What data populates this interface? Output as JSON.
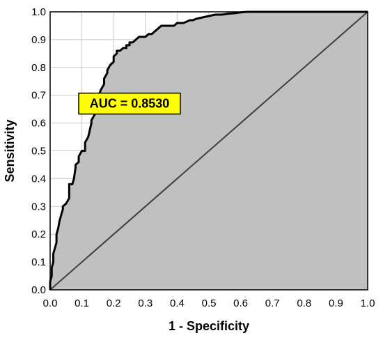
{
  "chart_data": {
    "type": "area",
    "title": "",
    "xlabel": "1 - Specificity",
    "ylabel": "Sensitivity",
    "xlim": [
      0,
      1
    ],
    "ylim": [
      0,
      1
    ],
    "x_ticks": [
      "0.0",
      "0.1",
      "0.2",
      "0.3",
      "0.4",
      "0.5",
      "0.6",
      "0.7",
      "0.8",
      "0.9",
      "1.0"
    ],
    "y_ticks": [
      "0.0",
      "0.1",
      "0.2",
      "0.3",
      "0.4",
      "0.5",
      "0.6",
      "0.7",
      "0.8",
      "0.9",
      "1.0"
    ],
    "grid": true,
    "annotation": {
      "text": "AUC = 0.8530",
      "x": 0.25,
      "y": 0.67
    },
    "colors": {
      "fill": "#c0c0c0",
      "curve": "#000000",
      "diagonal": "#404040",
      "annotation_bg": "#ffff00",
      "grid": "#c8c8c8"
    },
    "series": [
      {
        "x": [
          0,
          0,
          0.005,
          0.005,
          0.01,
          0.01,
          0.015,
          0.02,
          0.02,
          0.025,
          0.03,
          0.035,
          0.04,
          0.04,
          0.05,
          0.06,
          0.06,
          0.07,
          0.075,
          0.08,
          0.08,
          0.09,
          0.09,
          0.1,
          0.11,
          0.11,
          0.12,
          0.13,
          0.13,
          0.14,
          0.14,
          0.15,
          0.15,
          0.16,
          0.17,
          0.17,
          0.18,
          0.18,
          0.19,
          0.2,
          0.2,
          0.21,
          0.21,
          0.22,
          0.23,
          0.24,
          0.24,
          0.25,
          0.25,
          0.26,
          0.27,
          0.27,
          0.28,
          0.29,
          0.3,
          0.31,
          0.32,
          0.33,
          0.34,
          0.35,
          0.36,
          0.37,
          0.38,
          0.39,
          0.4,
          0.41,
          0.42,
          0.43,
          0.44,
          0.45,
          0.46,
          0.48,
          0.5,
          0.52,
          0.54,
          0.56,
          0.58,
          0.6,
          0.62,
          0.65,
          0.7,
          0.75,
          0.8,
          0.85,
          0.9,
          0.95,
          1.0
        ],
        "y": [
          0,
          0.03,
          0.05,
          0.08,
          0.1,
          0.13,
          0.15,
          0.17,
          0.2,
          0.22,
          0.25,
          0.27,
          0.29,
          0.3,
          0.31,
          0.33,
          0.38,
          0.38,
          0.4,
          0.44,
          0.45,
          0.46,
          0.48,
          0.5,
          0.5,
          0.53,
          0.55,
          0.6,
          0.61,
          0.63,
          0.65,
          0.67,
          0.69,
          0.72,
          0.74,
          0.76,
          0.78,
          0.79,
          0.81,
          0.82,
          0.84,
          0.85,
          0.86,
          0.86,
          0.87,
          0.87,
          0.88,
          0.88,
          0.89,
          0.89,
          0.9,
          0.9,
          0.91,
          0.91,
          0.91,
          0.92,
          0.92,
          0.93,
          0.94,
          0.95,
          0.95,
          0.95,
          0.95,
          0.95,
          0.96,
          0.96,
          0.96,
          0.965,
          0.97,
          0.97,
          0.975,
          0.98,
          0.985,
          0.99,
          0.99,
          0.993,
          0.995,
          0.998,
          1.0,
          1.0,
          1.0,
          1.0,
          1.0,
          1.0,
          1.0,
          1.0,
          1.0
        ]
      }
    ]
  }
}
